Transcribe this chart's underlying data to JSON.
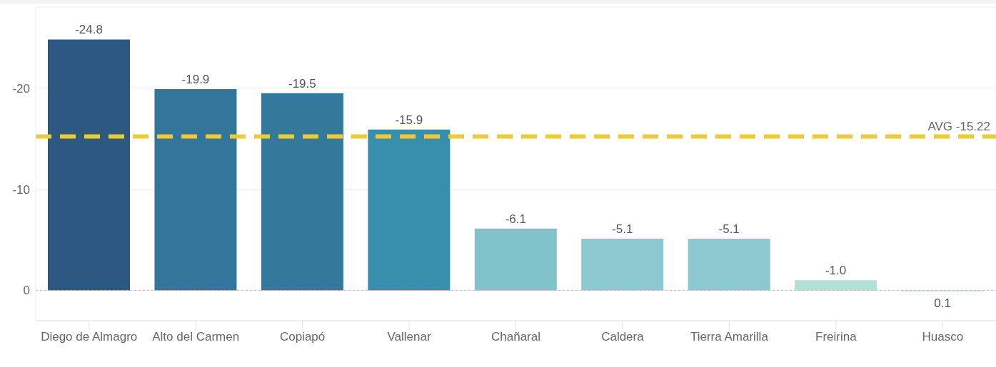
{
  "chart_data": {
    "type": "bar",
    "categories": [
      "Diego de Almagro",
      "Alto del Carmen",
      "Copiapó",
      "Vallenar",
      "Chañaral",
      "Caldera",
      "Tierra Amarilla",
      "Freirina",
      "Huasco"
    ],
    "values": [
      -24.8,
      -19.9,
      -19.5,
      -15.9,
      -6.1,
      -5.1,
      -5.1,
      -1.0,
      0.1
    ],
    "colors": [
      "#2d5882",
      "#34769b",
      "#34789c",
      "#388ead",
      "#80c3ca",
      "#8dc7cf",
      "#8dc7cf",
      "#b2e0d4",
      "#b2e0d4"
    ],
    "ylim": [
      3,
      -28
    ],
    "yticks": [
      0,
      -10,
      -20
    ],
    "grid": "y",
    "value_labels": [
      "-24.8",
      "-19.9",
      "-19.5",
      "-15.9",
      "-6.1",
      "-5.1",
      "-5.1",
      "-1.0",
      "0.1"
    ],
    "ref_lines": [
      {
        "axis": "y",
        "value": -15.22,
        "label": "AVG -15.22",
        "color": "#ebc940",
        "line_style": "dashed"
      },
      {
        "axis": "y",
        "value": 0,
        "color": "#bbbbbb",
        "line_style": "dotted"
      }
    ]
  }
}
